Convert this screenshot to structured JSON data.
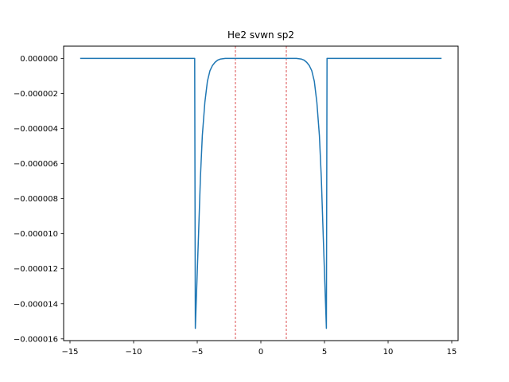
{
  "chart_data": {
    "type": "line",
    "title": "He2 svwn sp2",
    "xlabel": "",
    "ylabel": "",
    "xlim": [
      -15.5,
      15.5
    ],
    "ylim": [
      -1.61e-05,
      7e-07
    ],
    "grid": false,
    "x_ticks": [
      -15,
      -10,
      -5,
      0,
      5,
      10,
      15
    ],
    "x_tick_labels": [
      "−15",
      "−10",
      "−5",
      "0",
      "5",
      "10",
      "15"
    ],
    "y_ticks": [
      0,
      -2e-06,
      -4e-06,
      -6e-06,
      -8e-06,
      -1e-05,
      -1.2e-05,
      -1.4e-05,
      -1.6e-05
    ],
    "y_tick_labels": [
      "0.000000",
      "−0.000002",
      "−0.000004",
      "−0.000006",
      "−0.000008",
      "−0.000010",
      "−0.000012",
      "−0.000014",
      "−0.000016"
    ],
    "series": [
      {
        "color": "#1f77b4",
        "points": [
          [
            -14.2,
            0
          ],
          [
            -5.2,
            0
          ],
          [
            -5.15,
            -1.54e-05
          ],
          [
            -4.9,
            -1.01e-05
          ],
          [
            -4.75,
            -6.8e-06
          ],
          [
            -4.6,
            -4.4e-06
          ],
          [
            -4.4,
            -2.5e-06
          ],
          [
            -4.2,
            -1.3e-06
          ],
          [
            -4.0,
            -7e-07
          ],
          [
            -3.8,
            -4e-07
          ],
          [
            -3.6,
            -2.2e-07
          ],
          [
            -3.4,
            -1e-07
          ],
          [
            -3.2,
            -4e-08
          ],
          [
            -2.8,
            0
          ],
          [
            2.8,
            0
          ],
          [
            3.2,
            -4e-08
          ],
          [
            3.4,
            -1e-07
          ],
          [
            3.6,
            -2.2e-07
          ],
          [
            3.8,
            -4e-07
          ],
          [
            4.0,
            -7e-07
          ],
          [
            4.2,
            -1.3e-06
          ],
          [
            4.4,
            -2.5e-06
          ],
          [
            4.6,
            -4.4e-06
          ],
          [
            4.75,
            -6.8e-06
          ],
          [
            4.9,
            -1.01e-05
          ],
          [
            5.15,
            -1.54e-05
          ],
          [
            5.2,
            0
          ],
          [
            14.2,
            0
          ]
        ]
      }
    ],
    "vlines": [
      {
        "x": -2.0,
        "color": "#d62728",
        "style": "dashed"
      },
      {
        "x": 2.0,
        "color": "#d62728",
        "style": "dashed"
      }
    ]
  }
}
